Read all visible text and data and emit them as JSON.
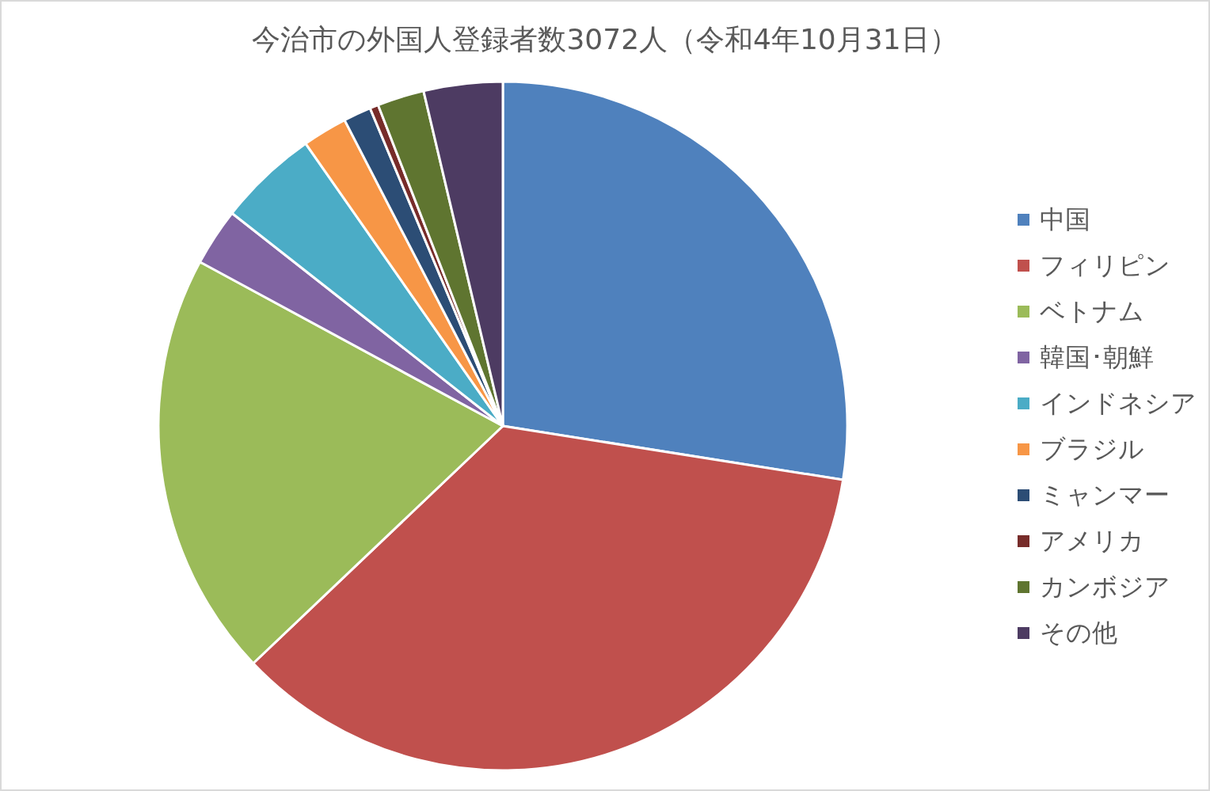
{
  "chart_data": {
    "type": "pie",
    "title": "今治市の外国人登録者数3072人（令和4年10月31日）",
    "categories": [
      "中国",
      "フィリピン",
      "ベトナム",
      "韓国･朝鮮",
      "インドネシア",
      "ブラジル",
      "ミャンマー",
      "アメリカ",
      "カンボジア",
      "その他"
    ],
    "values": [
      27.5,
      35.4,
      20.0,
      2.7,
      4.7,
      2.1,
      1.3,
      0.4,
      2.2,
      3.7
    ],
    "colors": [
      "#4f81bd",
      "#c0504d",
      "#9bbb59",
      "#8064a2",
      "#4bacc6",
      "#f79646",
      "#2c4d75",
      "#772c2a",
      "#5f7530",
      "#4d3b62"
    ],
    "legend": "right"
  }
}
